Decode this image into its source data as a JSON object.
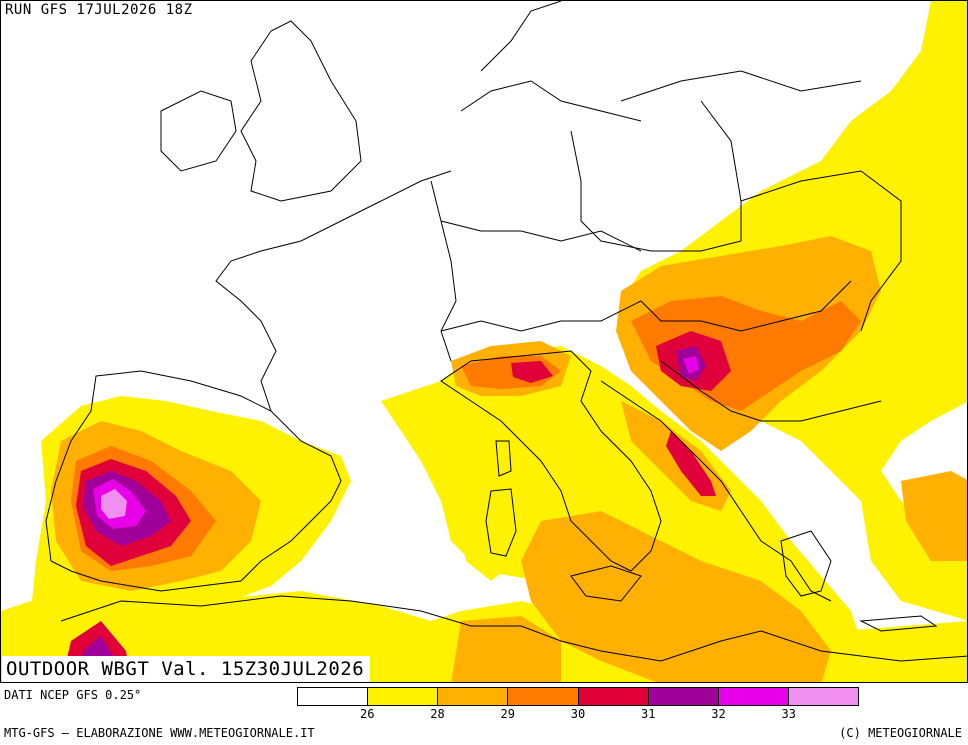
{
  "header": {
    "run": "RUN GFS 17JUL2026 18Z"
  },
  "map": {
    "title": "OUTDOOR WBGT Val. 15Z30JUL2026",
    "source": "DATI NCEP GFS 0.25°",
    "region": "Western and Central Europe, Mediterranean"
  },
  "legend": {
    "colors": [
      "#ffffff",
      "#fff200",
      "#ffb000",
      "#ff7a00",
      "#e0003a",
      "#a0009a",
      "#e800e8",
      "#f090f0"
    ],
    "labels": [
      "26",
      "28",
      "29",
      "30",
      "31",
      "32",
      "33"
    ]
  },
  "footer": {
    "left": "MTG-GFS — ELABORAZIONE WWW.METEOGIORNALE.IT",
    "right": "(C) METEOGIORNALE"
  }
}
